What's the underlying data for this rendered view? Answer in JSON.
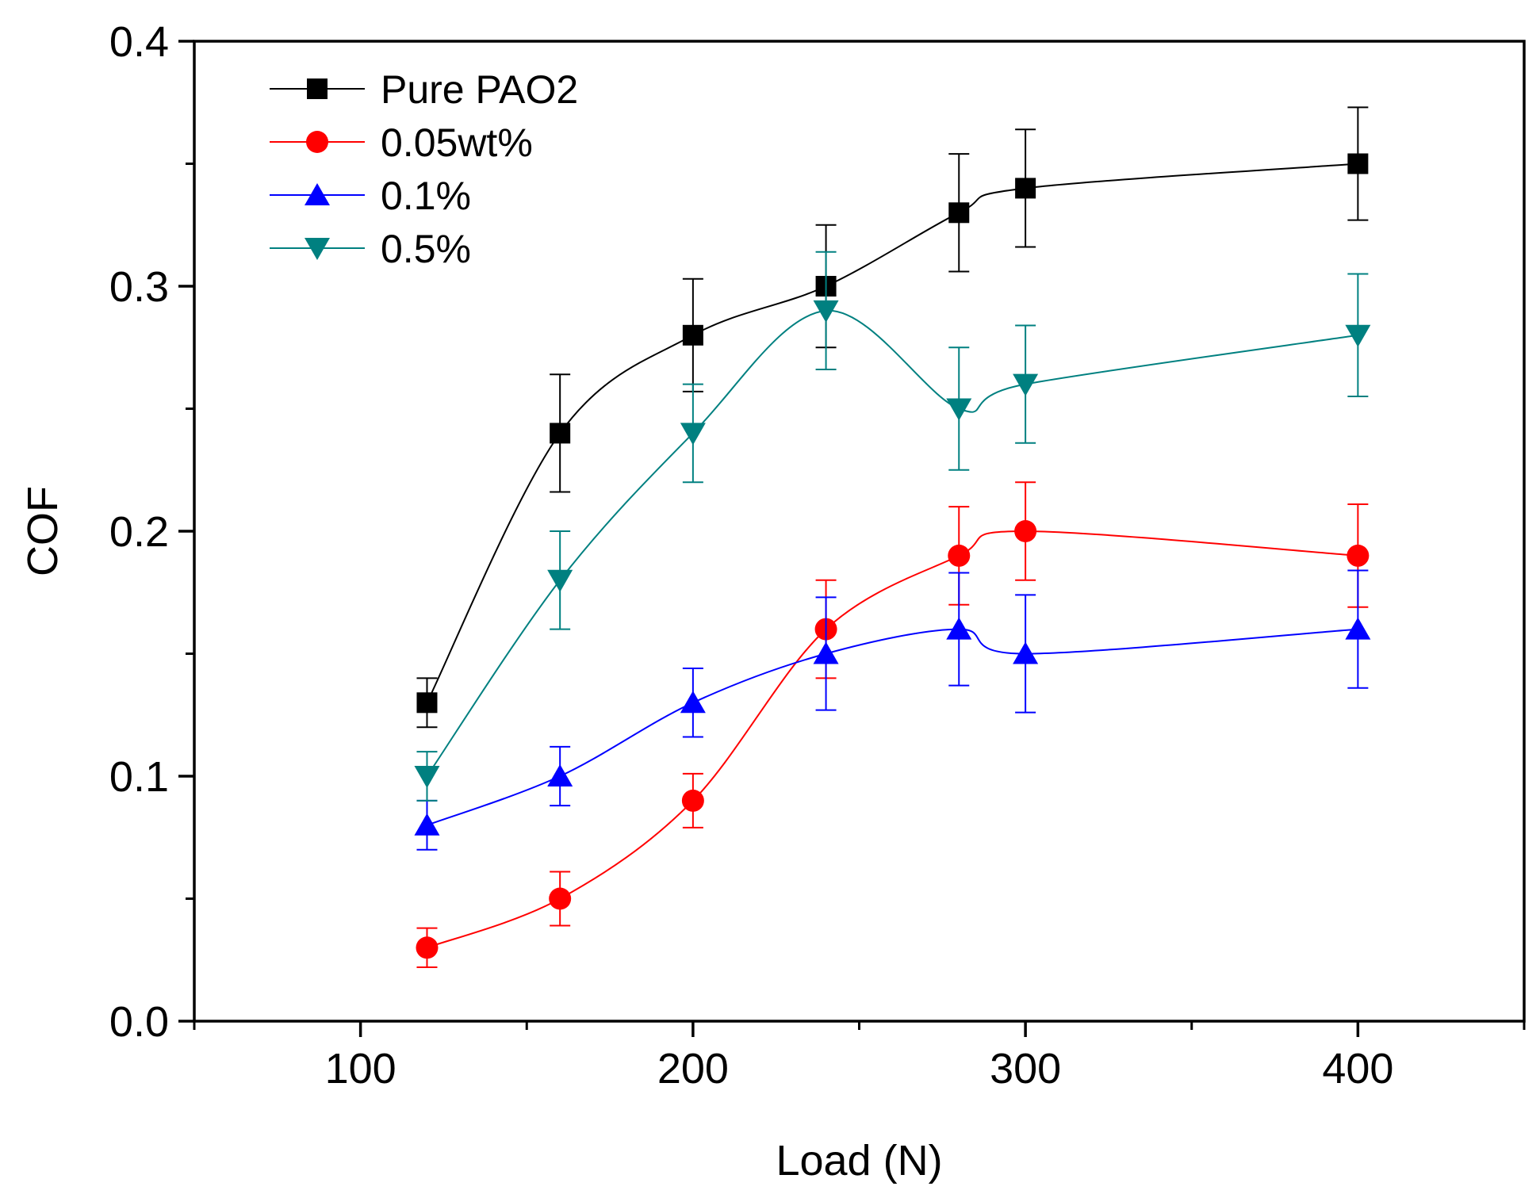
{
  "chart_data": {
    "type": "line",
    "title": "",
    "xlabel": "Load (N)",
    "ylabel": "COF",
    "xlim": [
      50,
      450
    ],
    "ylim": [
      0.0,
      0.4
    ],
    "xticks": [
      100,
      200,
      300,
      400
    ],
    "xtick_labels": [
      "100",
      "200",
      "300",
      "400"
    ],
    "yticks": [
      0.0,
      0.1,
      0.2,
      0.3,
      0.4
    ],
    "ytick_labels": [
      "0.0",
      "0.1",
      "0.2",
      "0.3",
      "0.4"
    ],
    "legend_position": "top-left",
    "x": [
      120,
      160,
      200,
      240,
      280,
      300,
      400
    ],
    "series": [
      {
        "name": "Pure PAO2",
        "color": "#000000",
        "marker": "square",
        "values": [
          0.13,
          0.24,
          0.28,
          0.3,
          0.33,
          0.34,
          0.35
        ],
        "errors": [
          0.01,
          0.024,
          0.023,
          0.025,
          0.024,
          0.024,
          0.023
        ]
      },
      {
        "name": "0.05wt%",
        "color": "#ff0000",
        "marker": "circle",
        "values": [
          0.03,
          0.05,
          0.09,
          0.16,
          0.19,
          0.2,
          0.19
        ],
        "errors": [
          0.008,
          0.011,
          0.011,
          0.02,
          0.02,
          0.02,
          0.021
        ]
      },
      {
        "name": "0.1%",
        "color": "#0000ff",
        "marker": "triangle-up",
        "values": [
          0.08,
          0.1,
          0.13,
          0.15,
          0.16,
          0.15,
          0.16
        ],
        "errors": [
          0.01,
          0.012,
          0.014,
          0.023,
          0.023,
          0.024,
          0.024
        ]
      },
      {
        "name": "0.5%",
        "color": "#008080",
        "marker": "triangle-down",
        "values": [
          0.1,
          0.18,
          0.24,
          0.29,
          0.25,
          0.26,
          0.28
        ],
        "errors": [
          0.01,
          0.02,
          0.02,
          0.024,
          0.025,
          0.024,
          0.025
        ]
      }
    ]
  }
}
